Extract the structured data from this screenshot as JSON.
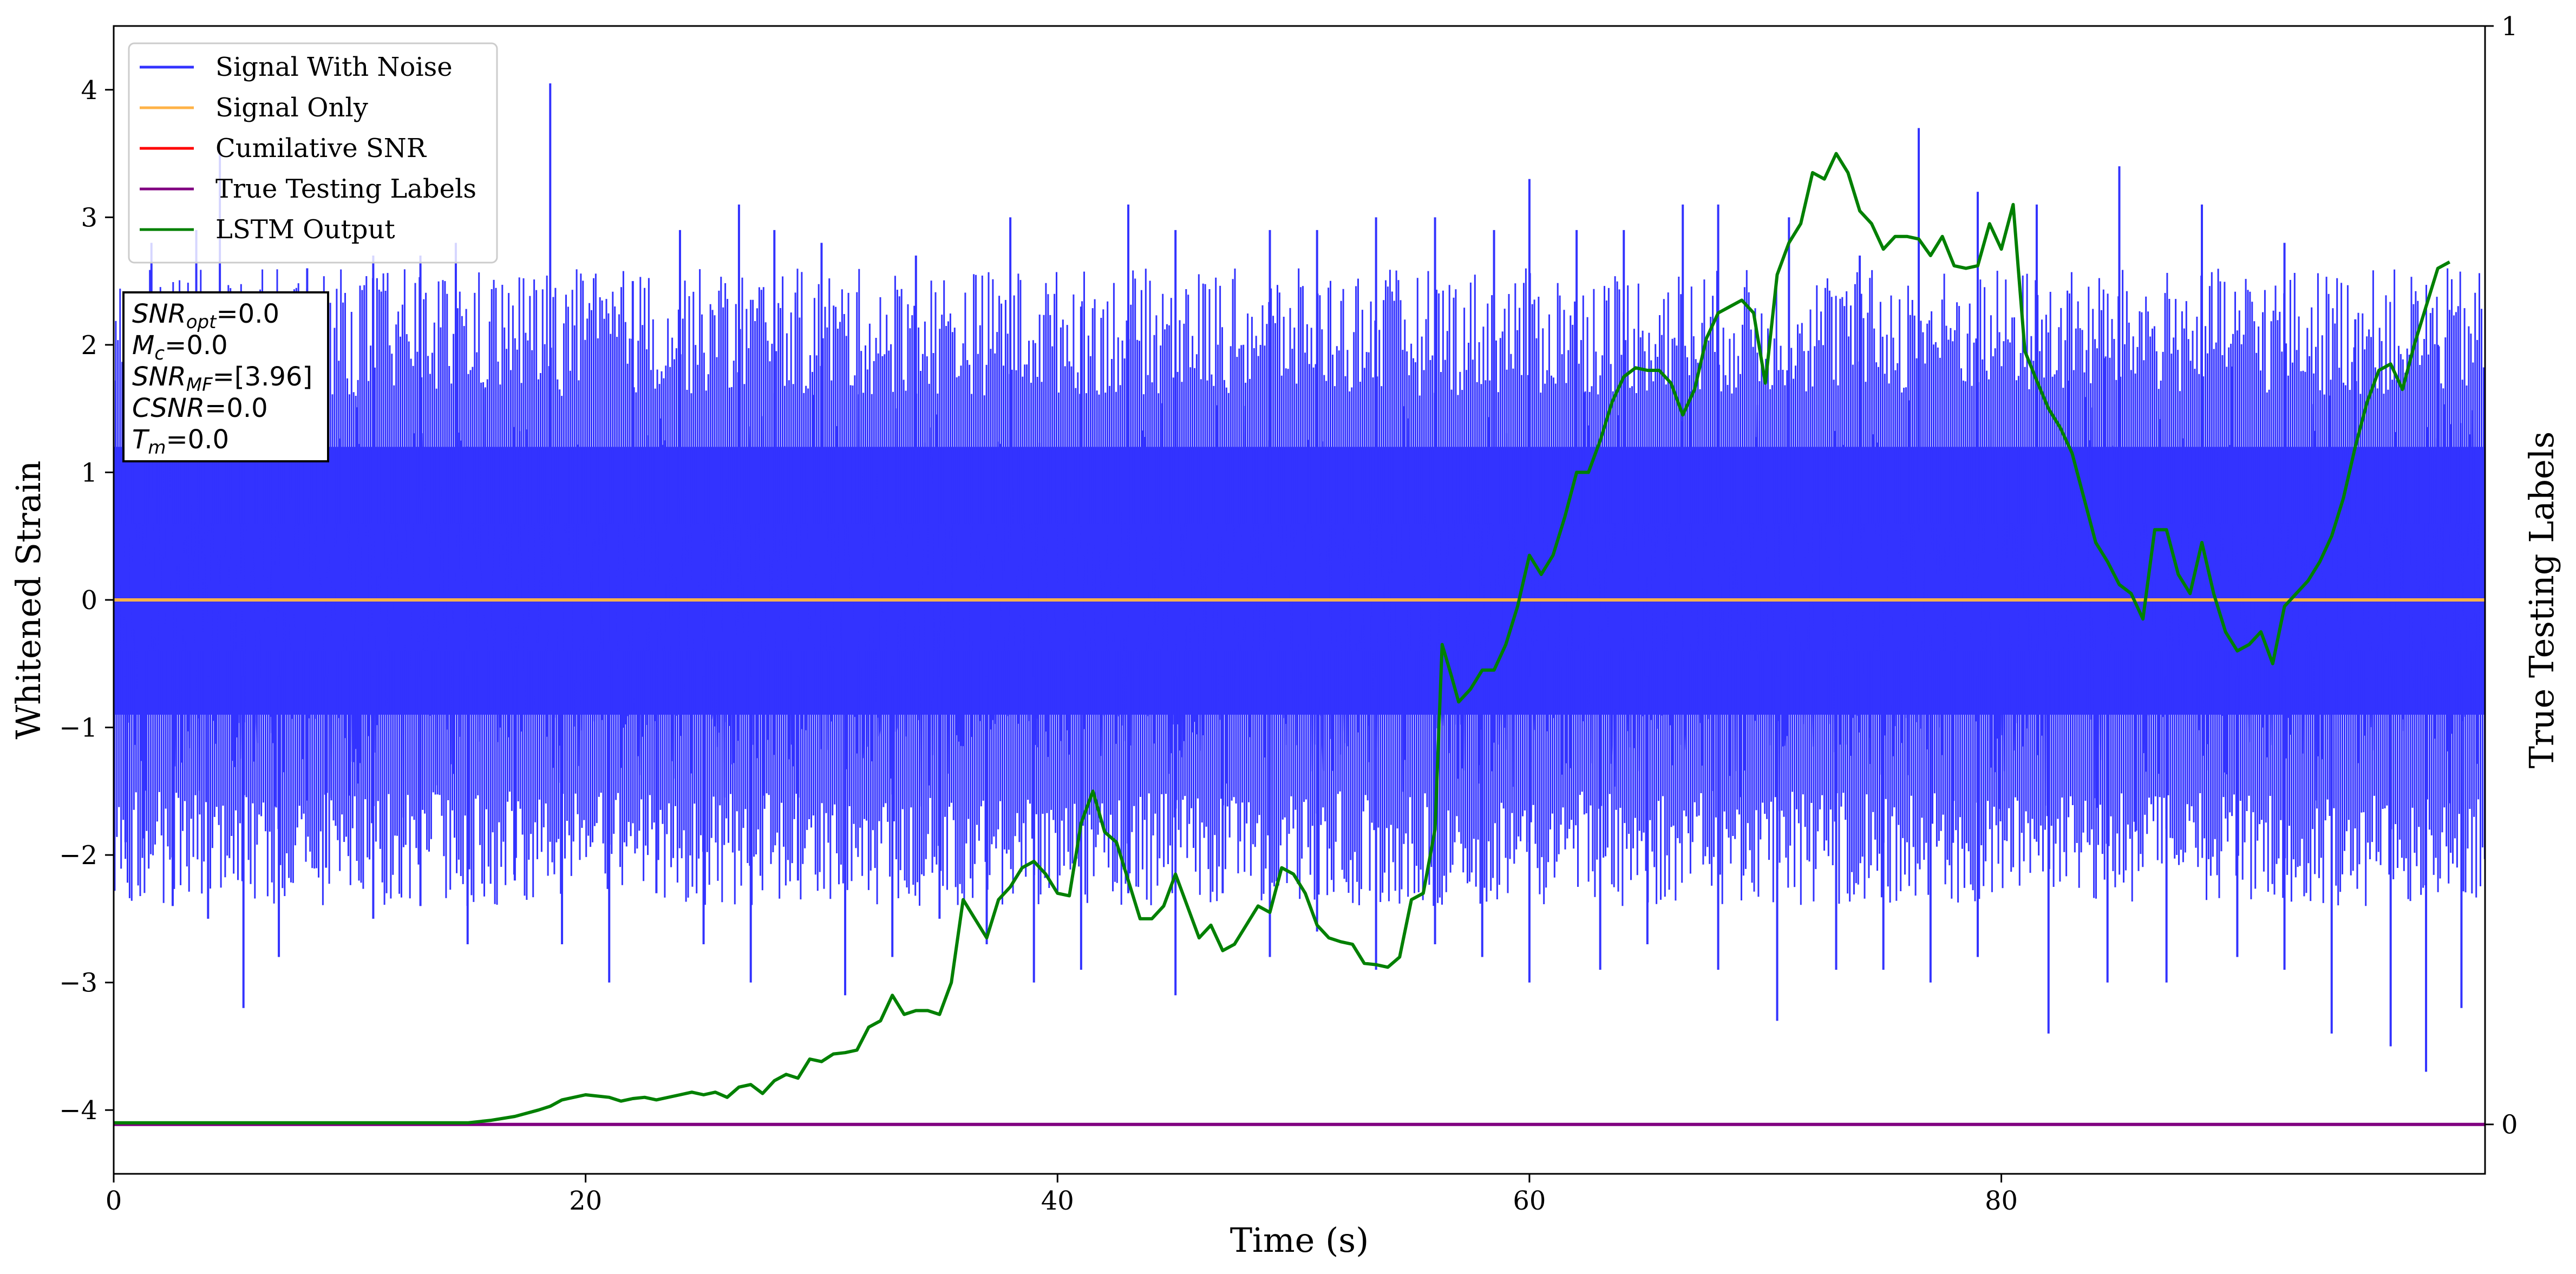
{
  "chart_data": {
    "type": "line",
    "xlabel": "Time (s)",
    "ylabel": "Whitened Strain",
    "y2label": "True Testing Labels",
    "xlim": [
      0,
      100.5
    ],
    "ylim": [
      -4.5,
      4.5
    ],
    "y2lim": [
      -0.045,
      1.0
    ],
    "x_ticks": [
      0,
      20,
      40,
      60,
      80
    ],
    "y_ticks": [
      -4,
      -3,
      -2,
      -1,
      0,
      1,
      2,
      3,
      4
    ],
    "y2_ticks": [
      0,
      1
    ],
    "legend_position": "top-left",
    "legend": [
      {
        "label": "Signal With Noise",
        "color": "#3333ff"
      },
      {
        "label": "Signal Only",
        "color": "#ffb347"
      },
      {
        "label": "Cumilative SNR",
        "color": "#ff0000"
      },
      {
        "label": "True Testing Labels",
        "color": "#800080"
      },
      {
        "label": "LSTM Output",
        "color": "#008000"
      }
    ],
    "annotation": {
      "lines": [
        {
          "var": "SNR",
          "sub": "opt",
          "value": "=0.0"
        },
        {
          "var": "M",
          "sub": "c",
          "value": "=0.0"
        },
        {
          "var": "SNR",
          "sub": "MF",
          "value": "=[3.96]"
        },
        {
          "var": "CSNR",
          "sub": "",
          "value": "=0.0"
        },
        {
          "var": "T",
          "sub": "m",
          "value": "=0.0"
        }
      ]
    },
    "series": [
      {
        "name": "Signal With Noise",
        "color": "#3333ff",
        "axis": "left",
        "style": "noise",
        "x_range": [
          0,
          100.5
        ],
        "core_min": -0.9,
        "core_max": 1.2,
        "peaks_up": [
          [
            1.6,
            2.8
          ],
          [
            3.5,
            2.9
          ],
          [
            4.5,
            3.5
          ],
          [
            7.5,
            2.0
          ],
          [
            8.2,
            2.6
          ],
          [
            11.0,
            2.7
          ],
          [
            13.0,
            2.7
          ],
          [
            14.5,
            2.8
          ],
          [
            18.5,
            4.05
          ],
          [
            22.0,
            2.5
          ],
          [
            24.0,
            2.9
          ],
          [
            26.5,
            3.1
          ],
          [
            28.0,
            2.9
          ],
          [
            30.0,
            2.8
          ],
          [
            34.0,
            2.7
          ],
          [
            38.0,
            3.0
          ],
          [
            41.0,
            2.3
          ],
          [
            43.0,
            3.1
          ],
          [
            45.0,
            2.9
          ],
          [
            49.0,
            2.9
          ],
          [
            51.0,
            2.9
          ],
          [
            53.5,
            3.0
          ],
          [
            56.0,
            3.0
          ],
          [
            58.5,
            2.9
          ],
          [
            60.0,
            3.3
          ],
          [
            62.0,
            2.9
          ],
          [
            64.0,
            2.9
          ],
          [
            66.5,
            3.1
          ],
          [
            68.0,
            3.1
          ],
          [
            71.0,
            3.0
          ],
          [
            74.0,
            2.7
          ],
          [
            76.5,
            3.7
          ],
          [
            79.0,
            3.2
          ],
          [
            81.5,
            3.1
          ],
          [
            85.0,
            3.4
          ],
          [
            88.5,
            3.1
          ],
          [
            92.0,
            2.8
          ],
          [
            95.0,
            2.2
          ],
          [
            98.5,
            2.0
          ]
        ],
        "peaks_down": [
          [
            0.5,
            -1.9
          ],
          [
            2.5,
            -2.4
          ],
          [
            4.0,
            -2.5
          ],
          [
            5.5,
            -3.2
          ],
          [
            7.0,
            -2.8
          ],
          [
            9.0,
            -2.1
          ],
          [
            11.0,
            -2.5
          ],
          [
            13.0,
            -2.4
          ],
          [
            15.0,
            -2.7
          ],
          [
            17.0,
            -2.2
          ],
          [
            19.0,
            -2.7
          ],
          [
            21.0,
            -3.0
          ],
          [
            23.0,
            -2.3
          ],
          [
            25.0,
            -2.7
          ],
          [
            27.0,
            -3.0
          ],
          [
            29.0,
            -2.2
          ],
          [
            31.0,
            -3.1
          ],
          [
            33.0,
            -2.8
          ],
          [
            35.0,
            -2.5
          ],
          [
            37.0,
            -2.7
          ],
          [
            39.0,
            -3.0
          ],
          [
            41.0,
            -2.9
          ],
          [
            43.0,
            -2.3
          ],
          [
            45.0,
            -3.1
          ],
          [
            47.0,
            -2.3
          ],
          [
            49.0,
            -2.8
          ],
          [
            51.0,
            -2.6
          ],
          [
            53.5,
            -2.9
          ],
          [
            56.0,
            -2.7
          ],
          [
            58.0,
            -2.8
          ],
          [
            60.0,
            -3.0
          ],
          [
            63.0,
            -2.9
          ],
          [
            65.0,
            -2.7
          ],
          [
            68.0,
            -2.9
          ],
          [
            70.5,
            -3.3
          ],
          [
            73.0,
            -2.9
          ],
          [
            75.0,
            -2.9
          ],
          [
            77.0,
            -3.0
          ],
          [
            79.0,
            -2.8
          ],
          [
            82.0,
            -3.4
          ],
          [
            84.5,
            -3.0
          ],
          [
            87.0,
            -3.0
          ],
          [
            90.0,
            -2.8
          ],
          [
            92.0,
            -2.9
          ],
          [
            94.0,
            -3.4
          ],
          [
            96.5,
            -3.5
          ],
          [
            98.0,
            -3.7
          ],
          [
            99.5,
            -3.2
          ]
        ]
      },
      {
        "name": "Signal Only",
        "color": "#ffb347",
        "axis": "left",
        "x": [
          0,
          100.5
        ],
        "y": [
          0,
          0
        ]
      },
      {
        "name": "True Testing Labels",
        "color": "#800080",
        "axis": "right",
        "x": [
          0,
          100.5
        ],
        "y": [
          0,
          0
        ]
      },
      {
        "name": "LSTM Output",
        "color": "#008000",
        "axis": "left",
        "x": [
          0,
          15,
          16,
          17,
          18,
          18.5,
          19,
          20,
          21,
          21.5,
          22,
          22.5,
          23,
          24,
          24.5,
          25,
          25.5,
          26,
          26.5,
          27,
          27.5,
          28,
          28.5,
          29,
          29.5,
          30,
          30.5,
          31,
          31.5,
          32,
          32.5,
          33,
          33.5,
          34,
          34.5,
          35,
          35.5,
          36,
          36.5,
          37,
          37.5,
          38,
          38.5,
          39,
          39.5,
          40,
          40.5,
          41,
          41.5,
          42,
          42.5,
          43,
          43.5,
          44,
          44.5,
          45,
          45.5,
          46,
          46.5,
          47,
          47.5,
          48,
          48.5,
          49,
          49.5,
          50,
          50.5,
          51,
          51.5,
          52,
          52.5,
          53,
          53.5,
          54,
          54.5,
          55,
          55.5,
          56,
          56.3,
          56.7,
          57,
          57.5,
          58,
          58.5,
          59,
          59.5,
          60,
          60.5,
          61,
          61.5,
          62,
          62.5,
          63,
          63.5,
          64,
          64.5,
          65,
          65.5,
          66,
          66.5,
          67,
          67.5,
          68,
          68.5,
          69,
          69.5,
          70,
          70.5,
          71,
          71.5,
          72,
          72.5,
          73,
          73.5,
          74,
          74.5,
          75,
          75.5,
          76,
          76.5,
          77,
          77.5,
          78,
          78.5,
          79,
          79.5,
          80,
          80.5,
          81,
          81.5,
          82,
          82.5,
          83,
          83.5,
          84,
          84.5,
          85,
          85.5,
          86,
          86.5,
          87,
          87.5,
          88,
          88.5,
          89,
          89.5,
          90,
          90.5,
          91,
          91.5,
          92,
          92.5,
          93,
          93.5,
          94,
          94.5,
          95,
          95.5,
          96,
          96.5,
          97,
          97.5,
          98,
          98.5,
          99
        ],
        "y": [
          -4.1,
          -4.1,
          -4.08,
          -4.05,
          -4.0,
          -3.97,
          -3.92,
          -3.88,
          -3.9,
          -3.93,
          -3.91,
          -3.9,
          -3.92,
          -3.88,
          -3.86,
          -3.88,
          -3.86,
          -3.9,
          -3.82,
          -3.8,
          -3.87,
          -3.77,
          -3.72,
          -3.75,
          -3.6,
          -3.62,
          -3.56,
          -3.55,
          -3.53,
          -3.35,
          -3.3,
          -3.1,
          -3.25,
          -3.22,
          -3.22,
          -3.25,
          -3.0,
          -2.35,
          -2.5,
          -2.65,
          -2.35,
          -2.25,
          -2.1,
          -2.05,
          -2.15,
          -2.3,
          -2.32,
          -1.75,
          -1.5,
          -1.82,
          -1.9,
          -2.2,
          -2.5,
          -2.5,
          -2.4,
          -2.15,
          -2.4,
          -2.65,
          -2.55,
          -2.75,
          -2.7,
          -2.55,
          -2.4,
          -2.45,
          -2.1,
          -2.15,
          -2.3,
          -2.55,
          -2.65,
          -2.68,
          -2.7,
          -2.85,
          -2.86,
          -2.88,
          -2.8,
          -2.35,
          -2.3,
          -1.8,
          -0.35,
          -0.6,
          -0.8,
          -0.7,
          -0.55,
          -0.55,
          -0.35,
          -0.05,
          0.35,
          0.2,
          0.35,
          0.65,
          1.0,
          1.0,
          1.25,
          1.55,
          1.75,
          1.82,
          1.8,
          1.8,
          1.7,
          1.45,
          1.65,
          2.05,
          2.25,
          2.3,
          2.35,
          2.25,
          1.7,
          2.55,
          2.8,
          2.95,
          3.35,
          3.3,
          3.5,
          3.35,
          3.05,
          2.95,
          2.75,
          2.85,
          2.85,
          2.83,
          2.7,
          2.85,
          2.62,
          2.6,
          2.62,
          2.95,
          2.75,
          3.1,
          1.95,
          1.72,
          1.5,
          1.35,
          1.15,
          0.8,
          0.45,
          0.3,
          0.12,
          0.05,
          -0.15,
          0.55,
          0.55,
          0.2,
          0.05,
          0.45,
          0.05,
          -0.25,
          -0.4,
          -0.35,
          -0.25,
          -0.5,
          -0.05,
          0.05,
          0.15,
          0.3,
          0.5,
          0.8,
          1.2,
          1.55,
          1.8,
          1.85,
          1.65,
          2.0,
          2.3,
          2.6,
          2.65
        ]
      }
    ]
  }
}
